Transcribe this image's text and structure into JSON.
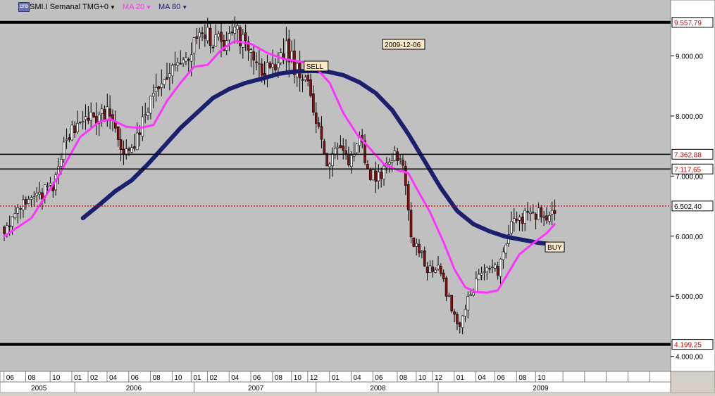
{
  "toolbar": {
    "logo_text": "CFD",
    "symbol_label": "SMI.I Semanal TMG+0",
    "ma20_label": "MA 20",
    "ma80_label": "MA 80",
    "ma20_color": "#ff33ff",
    "ma80_color": "#1a1f6e"
  },
  "chart_data": {
    "type": "candlestick",
    "date_box": "2009-12-06",
    "y_range": [
      3750,
      9930
    ],
    "y_ticks": [
      {
        "value": 9000,
        "label": "9.000,00"
      },
      {
        "value": 8000,
        "label": "8.000,00"
      },
      {
        "value": 7000,
        "label": "7.000,00"
      },
      {
        "value": 6000,
        "label": "6.000,00"
      },
      {
        "value": 5000,
        "label": "5.000,00"
      },
      {
        "value": 4000,
        "label": "4.000,00"
      }
    ],
    "h_lines": [
      {
        "value": 9557.79,
        "label": "9.557,79",
        "style": "thick",
        "label_color": "#cc0000"
      },
      {
        "value": 7362.88,
        "label": "7.362,88",
        "style": "thin",
        "label_color": "#cc0000"
      },
      {
        "value": 7117.65,
        "label": "7.117,65",
        "style": "thin",
        "label_color": "#cc0000"
      },
      {
        "value": 6502.4,
        "label": "6.502,40",
        "style": "dotted-red",
        "label_color": "#000000"
      },
      {
        "value": 4199.25,
        "label": "4.199,25",
        "style": "thick",
        "label_color": "#cc0000"
      }
    ],
    "annotations": [
      {
        "text": "SELL",
        "week": 115,
        "value": 8830
      },
      {
        "text": "BUY",
        "week": 203,
        "value": 5820
      }
    ],
    "month_ticks": [
      {
        "week": 2,
        "label": "06"
      },
      {
        "week": 10,
        "label": "08"
      },
      {
        "week": 19,
        "label": "10"
      },
      {
        "week": 27,
        "label": "01"
      },
      {
        "week": 33,
        "label": "02"
      },
      {
        "week": 40,
        "label": "04"
      },
      {
        "week": 48,
        "label": "06"
      },
      {
        "week": 56,
        "label": "08"
      },
      {
        "week": 64,
        "label": "10"
      },
      {
        "week": 71,
        "label": "01"
      },
      {
        "week": 77,
        "label": "02"
      },
      {
        "week": 85,
        "label": "04"
      },
      {
        "week": 93,
        "label": "06"
      },
      {
        "week": 101,
        "label": "08"
      },
      {
        "week": 108,
        "label": "10"
      },
      {
        "week": 114,
        "label": "12"
      },
      {
        "week": 122,
        "label": "01"
      },
      {
        "week": 130,
        "label": "04"
      },
      {
        "week": 138,
        "label": "06"
      },
      {
        "week": 147,
        "label": "08"
      },
      {
        "week": 154,
        "label": "10"
      },
      {
        "week": 160,
        "label": "12"
      },
      {
        "week": 168,
        "label": "01"
      },
      {
        "week": 176,
        "label": "04"
      },
      {
        "week": 183,
        "label": "06"
      },
      {
        "week": 191,
        "label": "08"
      },
      {
        "week": 198,
        "label": "10"
      }
    ],
    "year_labels": [
      {
        "week": 13,
        "label": "2005"
      },
      {
        "week": 48,
        "label": "2006"
      },
      {
        "week": 93,
        "label": "2007"
      },
      {
        "week": 138,
        "label": "2008"
      },
      {
        "week": 198,
        "label": "2009"
      }
    ],
    "year_separators": [
      26,
      70,
      115,
      160
    ],
    "price_anchors": [
      [
        0,
        6130
      ],
      [
        10,
        6650
      ],
      [
        14,
        6730
      ],
      [
        18,
        6800
      ],
      [
        23,
        7650
      ],
      [
        28,
        7950
      ],
      [
        34,
        8000
      ],
      [
        38,
        8030
      ],
      [
        44,
        7450
      ],
      [
        47,
        7350
      ],
      [
        52,
        8050
      ],
      [
        56,
        8350
      ],
      [
        63,
        8800
      ],
      [
        70,
        9150
      ],
      [
        75,
        9350
      ],
      [
        80,
        9200
      ],
      [
        85,
        9420
      ],
      [
        89,
        9230
      ],
      [
        95,
        8700
      ],
      [
        100,
        8800
      ],
      [
        104,
        9100
      ],
      [
        108,
        8750
      ],
      [
        112,
        8550
      ],
      [
        116,
        7750
      ],
      [
        119,
        7200
      ],
      [
        123,
        7550
      ],
      [
        127,
        7250
      ],
      [
        131,
        7600
      ],
      [
        135,
        7000
      ],
      [
        139,
        6950
      ],
      [
        143,
        7320
      ],
      [
        147,
        7250
      ],
      [
        150,
        6000
      ],
      [
        153,
        5750
      ],
      [
        156,
        5450
      ],
      [
        160,
        5500
      ],
      [
        165,
        4800
      ],
      [
        168,
        4450
      ],
      [
        170,
        4800
      ],
      [
        174,
        5250
      ],
      [
        178,
        5500
      ],
      [
        182,
        5420
      ],
      [
        186,
        6100
      ],
      [
        190,
        6300
      ],
      [
        195,
        6380
      ],
      [
        200,
        6350
      ],
      [
        203,
        6480
      ]
    ],
    "ma20_anchors": [
      [
        0,
        6000
      ],
      [
        10,
        6300
      ],
      [
        20,
        7000
      ],
      [
        28,
        7650
      ],
      [
        35,
        7900
      ],
      [
        39,
        7950
      ],
      [
        45,
        7820
      ],
      [
        50,
        7800
      ],
      [
        55,
        7850
      ],
      [
        60,
        8250
      ],
      [
        65,
        8550
      ],
      [
        70,
        8820
      ],
      [
        75,
        8850
      ],
      [
        80,
        9100
      ],
      [
        85,
        9250
      ],
      [
        91,
        9200
      ],
      [
        97,
        9050
      ],
      [
        103,
        8950
      ],
      [
        110,
        8900
      ],
      [
        115,
        8800
      ],
      [
        120,
        8550
      ],
      [
        125,
        8050
      ],
      [
        130,
        7700
      ],
      [
        135,
        7450
      ],
      [
        140,
        7200
      ],
      [
        145,
        7100
      ],
      [
        149,
        7050
      ],
      [
        152,
        6800
      ],
      [
        157,
        6400
      ],
      [
        162,
        5900
      ],
      [
        166,
        5450
      ],
      [
        170,
        5150
      ],
      [
        174,
        5070
      ],
      [
        178,
        5060
      ],
      [
        182,
        5100
      ],
      [
        186,
        5400
      ],
      [
        190,
        5700
      ],
      [
        195,
        5880
      ],
      [
        200,
        6050
      ],
      [
        203,
        6200
      ]
    ],
    "ma80_anchors": [
      [
        29,
        6300
      ],
      [
        35,
        6520
      ],
      [
        41,
        6750
      ],
      [
        47,
        6930
      ],
      [
        53,
        7200
      ],
      [
        59,
        7500
      ],
      [
        65,
        7800
      ],
      [
        71,
        8050
      ],
      [
        77,
        8300
      ],
      [
        83,
        8450
      ],
      [
        89,
        8550
      ],
      [
        95,
        8620
      ],
      [
        101,
        8700
      ],
      [
        107,
        8740
      ],
      [
        113,
        8750
      ],
      [
        119,
        8740
      ],
      [
        125,
        8680
      ],
      [
        131,
        8560
      ],
      [
        137,
        8380
      ],
      [
        143,
        8100
      ],
      [
        149,
        7700
      ],
      [
        155,
        7250
      ],
      [
        161,
        6800
      ],
      [
        167,
        6420
      ],
      [
        173,
        6200
      ],
      [
        179,
        6080
      ],
      [
        185,
        5990
      ],
      [
        191,
        5940
      ],
      [
        197,
        5890
      ],
      [
        203,
        5860
      ]
    ]
  }
}
